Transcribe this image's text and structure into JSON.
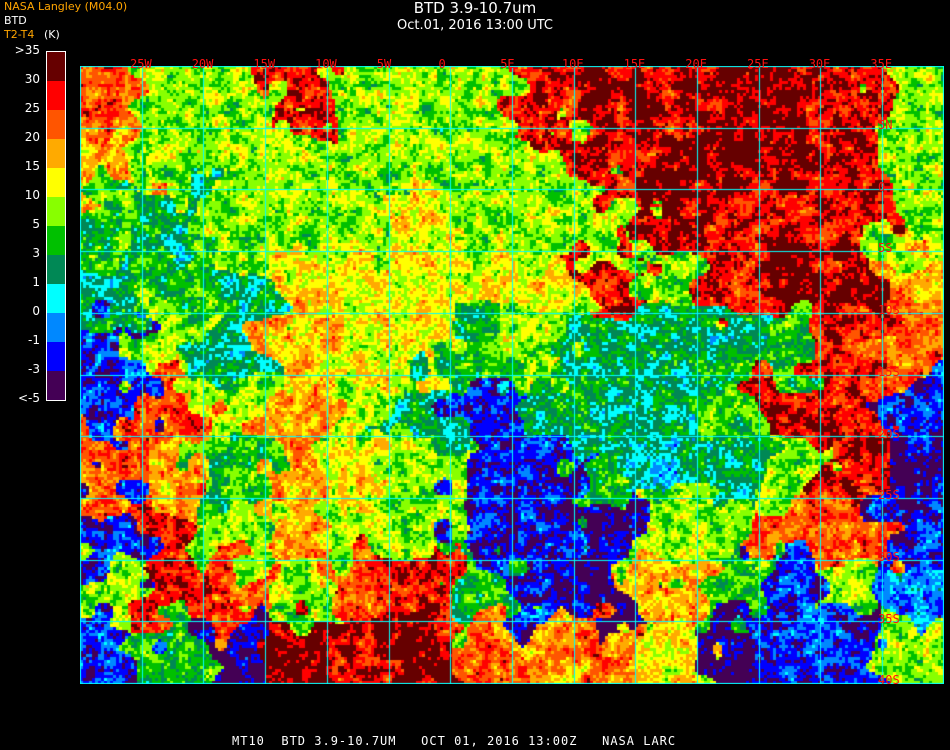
{
  "header": {
    "title": "BTD 3.9-10.7um",
    "subtitle": "Oct.01, 2016 13:00 UTC",
    "org_label": "NASA Langley (M04.0)",
    "product_label": "BTD",
    "unit_label_a": "T2-T4",
    "unit_label_b": "(K)"
  },
  "colorbar": {
    "labels": [
      ">35",
      "30",
      "25",
      "20",
      "15",
      "10",
      "5",
      "3",
      "1",
      "0",
      "-1",
      "-3",
      "<-5"
    ],
    "colors": [
      "#660000",
      "#ff0000",
      "#ff5500",
      "#ffaa00",
      "#ffff00",
      "#88ff00",
      "#00c000",
      "#008855",
      "#00ffff",
      "#0088ff",
      "#0000ff",
      "#440055"
    ]
  },
  "map": {
    "grid_color": "#00ffff",
    "label_color": "#ff1010",
    "longitude_labels": [
      "25W",
      "20W",
      "15W",
      "10W",
      "5W",
      "0",
      "5E",
      "10E",
      "15E",
      "20E",
      "25E",
      "30E",
      "35E"
    ],
    "latitude_labels": [
      "5N",
      "0",
      "5S",
      "10S",
      "15S",
      "20S",
      "25S",
      "30S",
      "35S",
      "40S"
    ]
  },
  "footer": "MT10  BTD 3.9-10.7UM   OCT 01, 2016 13:00Z   NASA LARC"
}
